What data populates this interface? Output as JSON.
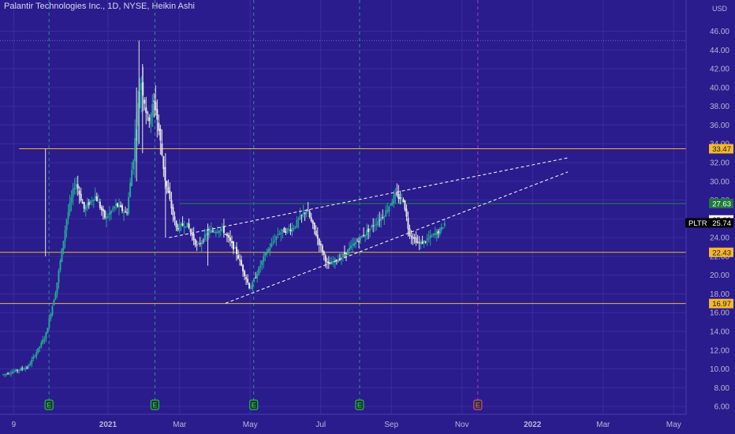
{
  "header": {
    "title": "Palantir Technologies Inc., 1D, NYSE, Heikin Ashi"
  },
  "colors": {
    "background": "#2a1c8c",
    "up": "#26a69a",
    "down": "#e6e6e6",
    "level_line": "#f5b82e",
    "green_level": "#1b8a3e",
    "trendline": "#ffffff",
    "price_badge": "#000000"
  },
  "chart_data": {
    "type": "candlestick",
    "title": "Palantir Technologies Inc., 1D, NYSE, Heikin Ashi",
    "currency": "USD",
    "symbol": "PLTR",
    "ylim": [
      5,
      47
    ],
    "y_ticks": [
      "6.00",
      "8.00",
      "10.00",
      "12.00",
      "14.00",
      "16.00",
      "18.00",
      "20.00",
      "22.00",
      "24.00",
      "26.00",
      "28.00",
      "30.00",
      "32.00",
      "34.00",
      "36.00",
      "38.00",
      "40.00",
      "42.00",
      "44.00",
      "46.00"
    ],
    "x_axis_labels": [
      "9",
      "2021",
      "Mar",
      "May",
      "Jul",
      "Sep",
      "Nov",
      "2022",
      "Mar",
      "May"
    ],
    "x_months_from_oct2020": [
      0.3,
      2.97,
      5,
      7,
      9,
      11,
      13,
      15,
      17,
      19
    ],
    "horizontal_levels": [
      {
        "value": 33.47,
        "label": "33.47",
        "color": "#f5b82e"
      },
      {
        "value": 27.63,
        "label": "27.63",
        "color": "#1b8a3e"
      },
      {
        "value": 22.43,
        "label": "22.43",
        "color": "#f5b82e"
      },
      {
        "value": 16.97,
        "label": "16.97",
        "color": "#f5b82e"
      }
    ],
    "top_dotted_level": 45,
    "last_price": {
      "symbol": "PLTR",
      "value": 25.74,
      "label": "25.74"
    },
    "ha_close_label": {
      "value": 25.88,
      "label": "25.88"
    },
    "earnings": [
      {
        "month": 1.3,
        "label": "E",
        "status": "past"
      },
      {
        "month": 4.3,
        "label": "E",
        "status": "past"
      },
      {
        "month": 7.1,
        "label": "E",
        "status": "past"
      },
      {
        "month": 10.1,
        "label": "E",
        "status": "past"
      },
      {
        "month": 13.45,
        "label": "E",
        "status": "upcoming"
      }
    ],
    "trendlines": [
      {
        "from": [
          4.7,
          24.0
        ],
        "to": [
          16.0,
          32.5
        ]
      },
      {
        "from": [
          6.3,
          17.0
        ],
        "to": [
          16.0,
          31.0
        ]
      }
    ],
    "price_path": [
      [
        0.0,
        9.4
      ],
      [
        0.7,
        10.2
      ],
      [
        1.2,
        13.5
      ],
      [
        1.5,
        18.5
      ],
      [
        1.8,
        26.0
      ],
      [
        2.05,
        30.0
      ],
      [
        2.3,
        27.0
      ],
      [
        2.6,
        28.5
      ],
      [
        2.9,
        26.0
      ],
      [
        3.2,
        27.5
      ],
      [
        3.5,
        26.5
      ],
      [
        3.7,
        33.0
      ],
      [
        3.9,
        41.0
      ],
      [
        4.1,
        36.5
      ],
      [
        4.3,
        38.5
      ],
      [
        4.6,
        30.0
      ],
      [
        4.9,
        25.0
      ],
      [
        5.2,
        25.5
      ],
      [
        5.5,
        23.0
      ],
      [
        5.8,
        24.5
      ],
      [
        6.2,
        25.0
      ],
      [
        6.6,
        22.5
      ],
      [
        7.0,
        18.5
      ],
      [
        7.4,
        22.0
      ],
      [
        7.8,
        24.5
      ],
      [
        8.2,
        25.0
      ],
      [
        8.6,
        27.0
      ],
      [
        8.9,
        24.0
      ],
      [
        9.2,
        21.0
      ],
      [
        9.6,
        22.0
      ],
      [
        10.0,
        23.5
      ],
      [
        10.4,
        25.0
      ],
      [
        10.8,
        26.5
      ],
      [
        11.1,
        28.5
      ],
      [
        11.35,
        28.0
      ],
      [
        11.5,
        24.5
      ],
      [
        11.8,
        23.3
      ],
      [
        12.1,
        24.0
      ],
      [
        12.4,
        24.8
      ],
      [
        12.55,
        25.8
      ]
    ]
  }
}
